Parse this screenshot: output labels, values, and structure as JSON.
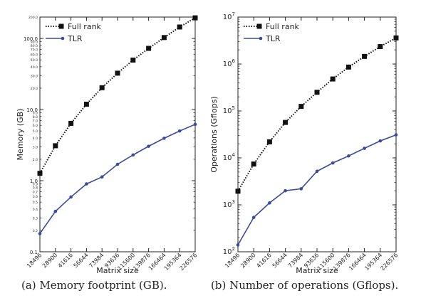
{
  "chart_data": [
    {
      "type": "line",
      "x_scale": "category",
      "y_scale": "log",
      "x": [
        "18496",
        "28900",
        "41616",
        "56644",
        "73984",
        "93636",
        "115600",
        "139876",
        "166464",
        "195364",
        "226576"
      ],
      "xlabel": "Matrix size",
      "ylabel": "Memory (GB)",
      "ylim": [
        0.1,
        200
      ],
      "major_ticks": [
        0.1,
        1,
        10,
        100
      ],
      "major_tick_labels": [
        "0.1",
        "1.0",
        "10.0",
        "100.0"
      ],
      "minor_ticks": [
        0.2,
        0.3,
        0.4,
        0.5,
        0.6,
        0.7,
        0.8,
        0.9,
        2,
        3,
        4,
        5,
        6,
        7,
        8,
        9,
        20,
        30,
        40,
        50,
        60,
        70,
        80,
        90,
        200
      ],
      "minor_tick_labels": [
        "0.2",
        "0.3",
        "0.4",
        "0.5",
        "0.6",
        "0.7",
        "0.8",
        "0.9",
        "2.0",
        "3.0",
        "4.0",
        "5.0",
        "6.0",
        "7.0",
        "8.0",
        "9.0",
        "20.0",
        "30.0",
        "40.0",
        "50.0",
        "60.0",
        "70.0",
        "80.0",
        "90.0",
        "200.0"
      ],
      "legend_position": "top-left",
      "grid": false,
      "series": [
        {
          "name": "Full rank",
          "color": "#111111",
          "marker": "square",
          "line_style": "dotted",
          "values": [
            1.27,
            3.1,
            6.4,
            11.9,
            20.3,
            32.5,
            49.7,
            72.6,
            103,
            145,
            195
          ]
        },
        {
          "name": "TLR",
          "color": "#3a4a9c",
          "marker": "circle",
          "line_style": "solid",
          "values": [
            0.18,
            0.37,
            0.59,
            0.9,
            1.13,
            1.7,
            2.3,
            3.05,
            3.95,
            5.0,
            6.2
          ]
        }
      ]
    },
    {
      "type": "line",
      "x_scale": "category",
      "y_scale": "log",
      "x": [
        "18496",
        "28900",
        "41616",
        "56644",
        "73984",
        "93636",
        "115600",
        "139876",
        "166464",
        "195364",
        "226576"
      ],
      "xlabel": "Matrix size",
      "ylabel": "Operations (Gflops)",
      "ylim": [
        100,
        10000000
      ],
      "major_ticks": [
        100,
        1000,
        10000,
        100000,
        1000000,
        10000000
      ],
      "major_tick_labels": [
        "2",
        "3",
        "4",
        "5",
        "6",
        "7"
      ],
      "minor_ticks": [
        200,
        300,
        400,
        500,
        600,
        700,
        800,
        900,
        2000,
        3000,
        4000,
        5000,
        6000,
        7000,
        8000,
        9000,
        20000,
        30000,
        40000,
        50000,
        60000,
        70000,
        80000,
        90000,
        200000,
        300000,
        400000,
        500000,
        600000,
        700000,
        800000,
        900000,
        2000000,
        3000000,
        4000000,
        5000000,
        6000000,
        7000000,
        8000000,
        9000000
      ],
      "legend_position": "top-left",
      "grid": false,
      "series": [
        {
          "name": "Full rank",
          "color": "#111111",
          "marker": "square",
          "line_style": "dotted",
          "values": [
            1950,
            7400,
            22000,
            57000,
            125000,
            250000,
            480000,
            860000,
            1450000,
            2350000,
            3600000
          ]
        },
        {
          "name": "TLR",
          "color": "#3a4a9c",
          "marker": "circle",
          "line_style": "solid",
          "values": [
            140,
            540,
            1100,
            2000,
            2200,
            5200,
            7800,
            11000,
            16000,
            23000,
            31000
          ]
        }
      ]
    }
  ],
  "captions": {
    "a": "(a) Memory footprint (GB).",
    "b": "(b) Number of operations (Gflops)."
  }
}
